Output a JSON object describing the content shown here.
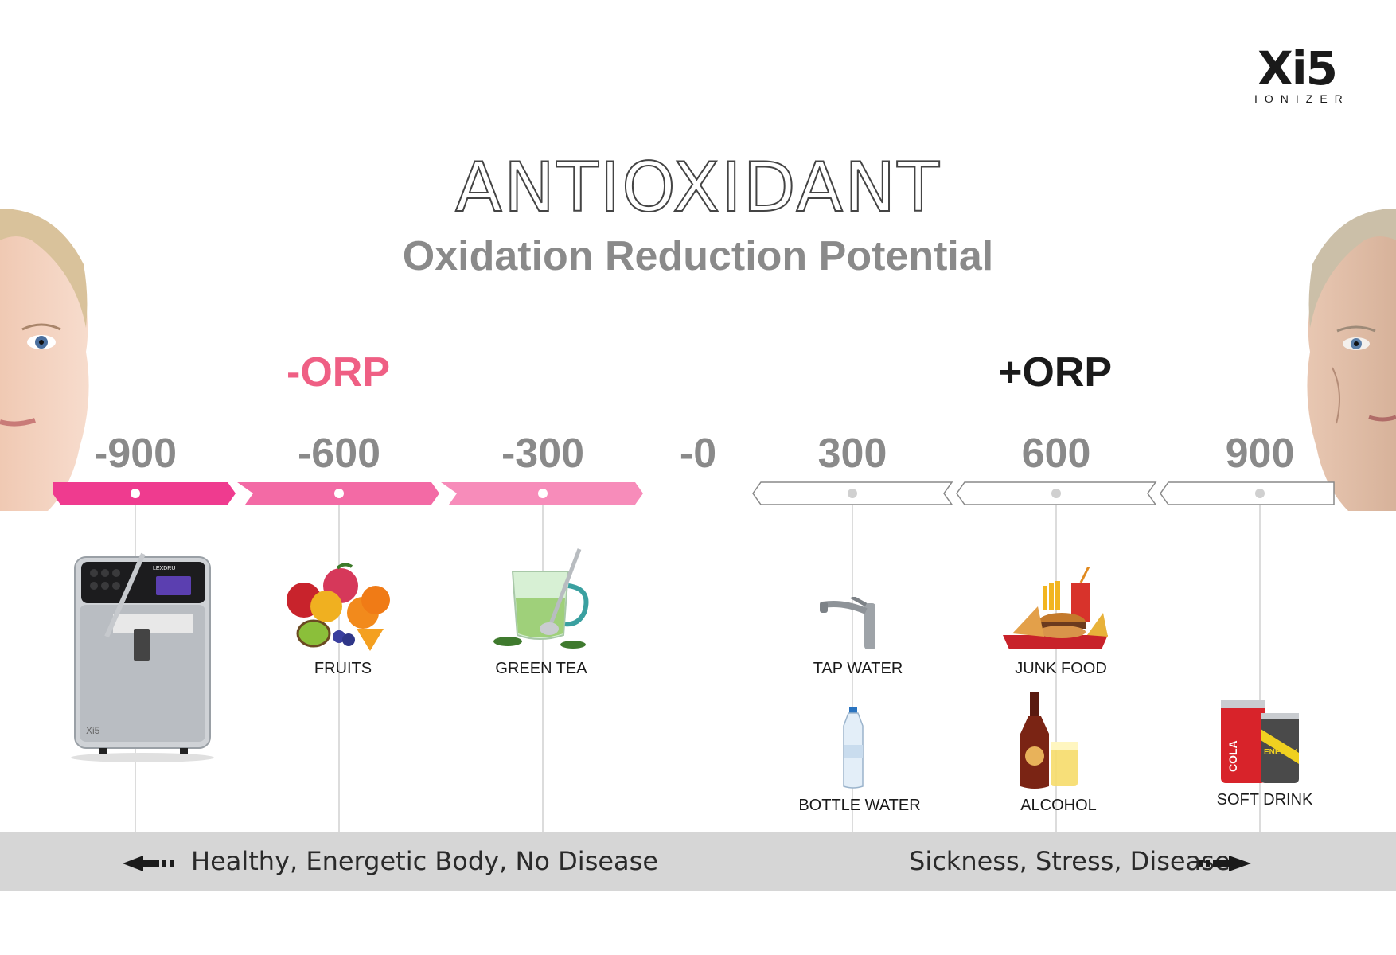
{
  "brand": {
    "mark": "Xi5",
    "sub": "IONIZER"
  },
  "title": "ANTIOXIDANT",
  "subtitle": "Oxidation Reduction Potential",
  "orp_negative_label": "-ORP",
  "orp_positive_label": "+ORP",
  "scale": {
    "ticks": [
      "-900",
      "-600",
      "-300",
      "-0",
      "300",
      "600",
      "900"
    ],
    "negative_colors": [
      "#ef3b8f",
      "#f36aa5",
      "#f78cba"
    ],
    "positive_outline": "#888888"
  },
  "items": {
    "fruits": "FRUITS",
    "green_tea": "GREEN TEA",
    "tap_water": "TAP WATER",
    "junk_food": "JUNK FOOD",
    "bottle_water": "BOTTLE WATER",
    "alcohol": "ALCOHOL",
    "soft_drink": "SOFT DRINK"
  },
  "device": {
    "brand_text": "LEXDRU",
    "badge": "Xi5"
  },
  "can_labels": {
    "cola": "COLA",
    "energy": "ENERGY"
  },
  "bottom": {
    "left_text": "Healthy, Energetic Body, No Disease",
    "right_text": "Sickness, Stress, Disease"
  }
}
